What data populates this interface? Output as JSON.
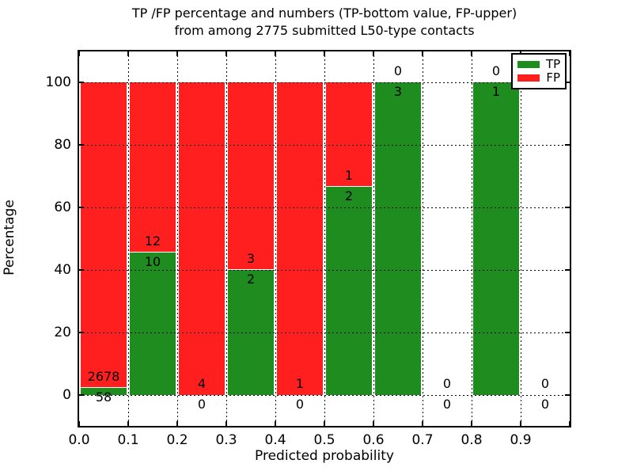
{
  "chart_data": {
    "type": "bar",
    "stacked": true,
    "title_line1": "TP /FP percentage and numbers (TP-bottom value, FP-upper)",
    "title_line2": "from among 2775 submitted L50-type contacts",
    "xlabel": "Predicted probability",
    "ylabel": "Percentage",
    "xlim": [
      0.0,
      1.0
    ],
    "ylim": [
      -10,
      110
    ],
    "xticks": [
      "0.0",
      "0.1",
      "0.2",
      "0.3",
      "0.4",
      "0.5",
      "0.6",
      "0.7",
      "0.8",
      "0.9"
    ],
    "yticks": [
      "0",
      "20",
      "40",
      "60",
      "80",
      "100"
    ],
    "grid": "dotted-black-on-top-of-bars",
    "legend_position": "upper-right",
    "colors": {
      "tp": "#1e8c1e",
      "fp": "#ff1f1f",
      "grid": "#000000",
      "spine": "#000000",
      "background": "#ffffff"
    },
    "legend": [
      {
        "label": "TP",
        "key": "tp"
      },
      {
        "label": "FP",
        "key": "fp"
      }
    ],
    "bins": [
      {
        "x0": 0.0,
        "x1": 0.1,
        "tp": 58,
        "fp": 2678,
        "tp_pct": 2.1
      },
      {
        "x0": 0.1,
        "x1": 0.2,
        "tp": 10,
        "fp": 12,
        "tp_pct": 45.5
      },
      {
        "x0": 0.2,
        "x1": 0.3,
        "tp": 0,
        "fp": 4,
        "tp_pct": 0
      },
      {
        "x0": 0.3,
        "x1": 0.4,
        "tp": 2,
        "fp": 3,
        "tp_pct": 40
      },
      {
        "x0": 0.4,
        "x1": 0.5,
        "tp": 0,
        "fp": 1,
        "tp_pct": 0
      },
      {
        "x0": 0.5,
        "x1": 0.6,
        "tp": 2,
        "fp": 1,
        "tp_pct": 66.7
      },
      {
        "x0": 0.6,
        "x1": 0.7,
        "tp": 3,
        "fp": 0,
        "tp_pct": 100
      },
      {
        "x0": 0.7,
        "x1": 0.8,
        "tp": 0,
        "fp": 0,
        "tp_pct": null
      },
      {
        "x0": 0.8,
        "x1": 0.9,
        "tp": 1,
        "fp": 0,
        "tp_pct": 100
      },
      {
        "x0": 0.9,
        "x1": 1.0,
        "tp": 0,
        "fp": 0,
        "tp_pct": null
      }
    ]
  }
}
